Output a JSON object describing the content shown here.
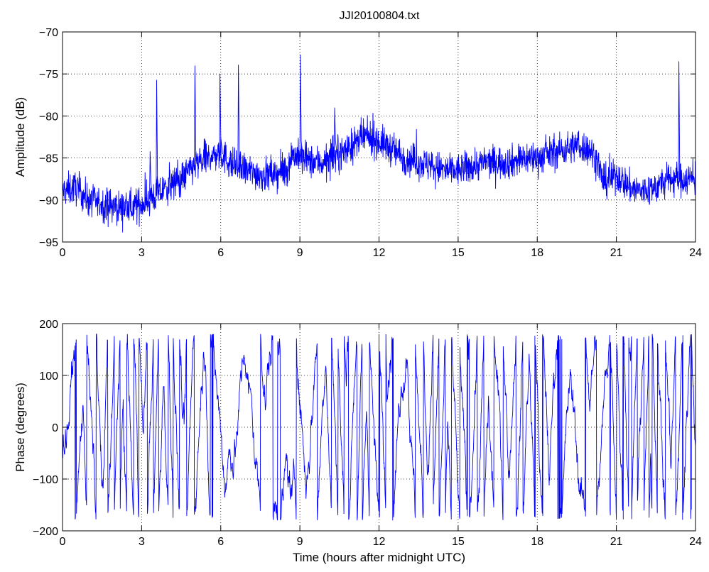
{
  "figure": {
    "title": "JJI20100804.txt"
  },
  "chart_data": [
    {
      "type": "line",
      "title": "JJI20100804.txt",
      "xlabel": "",
      "ylabel": "Amplitude (dB)",
      "xlim": [
        0,
        24
      ],
      "ylim": [
        -95,
        -70
      ],
      "xticks": [
        0,
        3,
        6,
        9,
        12,
        15,
        18,
        21,
        24
      ],
      "yticks": [
        -95,
        -90,
        -85,
        -80,
        -75,
        -70
      ],
      "grid": true,
      "color": "#0000ff",
      "series": [
        {
          "x": [
            0,
            0.5,
            1,
            1.5,
            2,
            2.5,
            3,
            3.5,
            4,
            4.5,
            5,
            5.5,
            6,
            6.5,
            7,
            7.5,
            8,
            8.5,
            8.7,
            9,
            9.5,
            10,
            10.5,
            11,
            11.5,
            12,
            12.5,
            13,
            13.5,
            14,
            14.5,
            15,
            15.5,
            16,
            16.5,
            17,
            17.5,
            18,
            18.5,
            19,
            19.5,
            20,
            20.3,
            20.5,
            21,
            21.5,
            22,
            22.5,
            23,
            23.5,
            24
          ],
          "y": [
            -89,
            -88.5,
            -90,
            -90.5,
            -90.8,
            -91,
            -90.5,
            -89.5,
            -88.5,
            -87.5,
            -86,
            -85,
            -84.5,
            -86,
            -86.5,
            -87,
            -87,
            -86.5,
            -84.5,
            -85,
            -85.5,
            -85.5,
            -84.5,
            -83.5,
            -82.5,
            -83,
            -84,
            -85,
            -85.5,
            -86,
            -86.5,
            -86.5,
            -86,
            -85.5,
            -85.5,
            -85.5,
            -85,
            -85,
            -84.5,
            -84,
            -83.5,
            -84,
            -85.5,
            -88,
            -87,
            -88.5,
            -89,
            -88.5,
            -87.5,
            -87.5,
            -87.5
          ],
          "spikes": [
            {
              "x": 3.3,
              "y": -84.2
            },
            {
              "x": 3.55,
              "y": -75.7
            },
            {
              "x": 5.0,
              "y": -74.0
            },
            {
              "x": 5.95,
              "y": -75.0
            },
            {
              "x": 6.65,
              "y": -73.9
            },
            {
              "x": 9.0,
              "y": -72.7
            },
            {
              "x": 10.3,
              "y": -79.0
            },
            {
              "x": 23.35,
              "y": -73.5
            }
          ]
        }
      ]
    },
    {
      "type": "line",
      "title": "",
      "xlabel": "Time (hours after midnight UTC)",
      "ylabel": "Phase (degrees)",
      "xlim": [
        0,
        24
      ],
      "ylim": [
        -200,
        200
      ],
      "xticks": [
        0,
        3,
        6,
        9,
        12,
        15,
        18,
        21,
        24
      ],
      "yticks": [
        -200,
        -100,
        0,
        100,
        200
      ],
      "grid": true,
      "color": "#0000ff",
      "wrap_range": [
        -180,
        180
      ],
      "series": [
        {
          "x": [
            0,
            0.5,
            1,
            1.5,
            2,
            2.5,
            3,
            3.5,
            4,
            4.5,
            5,
            5.5,
            6,
            6.5,
            7,
            7.5,
            8,
            8.5,
            9,
            9.5,
            10,
            10.5,
            11,
            11.5,
            12,
            12.5,
            13,
            13.5,
            14,
            14.5,
            15,
            15.5,
            16,
            16.5,
            17,
            17.5,
            18,
            18.5,
            19,
            19.5,
            20,
            20.5,
            21,
            21.5,
            22,
            22.5,
            23,
            23.5,
            24
          ],
          "y_unwrapped_rate": [
            400,
            600,
            1200,
            1400,
            1600,
            1500,
            1400,
            1600,
            1500,
            1400,
            1200,
            900,
            500,
            300,
            600,
            500,
            300,
            200,
            600,
            900,
            1300,
            1500,
            1400,
            1300,
            1200,
            900,
            800,
            1200,
            1400,
            1300,
            1500,
            1400,
            1200,
            1000,
            1300,
            1500,
            1400,
            1000,
            600,
            500,
            400,
            600,
            1200,
            1400,
            1500,
            1300,
            1100,
            1400,
            1300
          ]
        }
      ]
    }
  ]
}
